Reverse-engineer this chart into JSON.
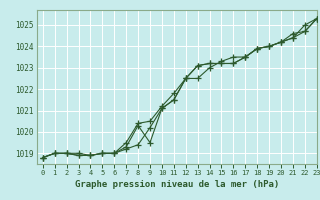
{
  "title": "Graphe pression niveau de la mer (hPa)",
  "bg_color": "#c8ecec",
  "grid_color": "#ffffff",
  "line_color": "#2d5a2d",
  "spine_color": "#8aaa8a",
  "xlim": [
    -0.5,
    23
  ],
  "ylim": [
    1018.5,
    1025.7
  ],
  "yticks": [
    1019,
    1020,
    1021,
    1022,
    1023,
    1024,
    1025
  ],
  "xticks": [
    0,
    1,
    2,
    3,
    4,
    5,
    6,
    7,
    8,
    9,
    10,
    11,
    12,
    13,
    14,
    15,
    16,
    17,
    18,
    19,
    20,
    21,
    22,
    23
  ],
  "series": [
    [
      1018.8,
      1019.0,
      1019.0,
      1019.0,
      1018.9,
      1019.0,
      1019.0,
      1019.2,
      1019.4,
      1020.2,
      1021.1,
      1021.5,
      1022.5,
      1023.1,
      1023.2,
      1023.2,
      1023.2,
      1023.5,
      1023.9,
      1024.0,
      1024.2,
      1024.4,
      1025.0,
      1025.3
    ],
    [
      1018.8,
      1019.0,
      1019.0,
      1018.9,
      1018.9,
      1019.0,
      1019.0,
      1019.3,
      1020.3,
      1019.5,
      1021.1,
      1021.5,
      1022.5,
      1023.1,
      1023.2,
      1023.2,
      1023.2,
      1023.5,
      1023.9,
      1024.0,
      1024.2,
      1024.4,
      1024.7,
      1025.3
    ],
    [
      1018.8,
      1019.0,
      1019.0,
      1018.9,
      1018.9,
      1019.0,
      1019.0,
      1019.5,
      1020.4,
      1020.5,
      1021.2,
      1021.8,
      1022.5,
      1022.5,
      1023.0,
      1023.3,
      1023.5,
      1023.5,
      1023.9,
      1024.0,
      1024.2,
      1024.6,
      1024.7,
      1025.3
    ]
  ],
  "marker": "+",
  "markersize": 4,
  "linewidth": 0.8,
  "ylabel_fontsize": 5.5,
  "xlabel_fontsize": 5.0,
  "title_fontsize": 6.5
}
